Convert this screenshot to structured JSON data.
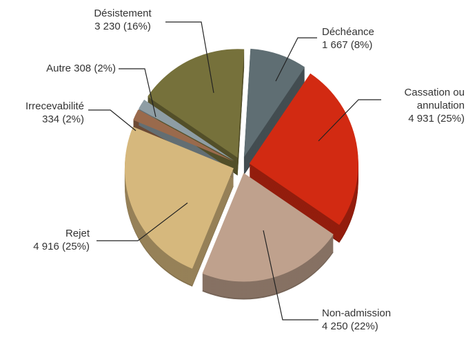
{
  "chart_data": {
    "type": "pie",
    "categories": [
      "Déchéance",
      "Cassation ou annulation",
      "Non-admission",
      "Rejet",
      "Irrecevabilité",
      "Autre",
      "Désistement"
    ],
    "values": [
      1667,
      4931,
      4250,
      4916,
      334,
      308,
      3230
    ],
    "value_labels": [
      "1 667 (8%)",
      "4 931 (25%)",
      "4 250 (22%)",
      "4 916 (25%)",
      "334 (2%)",
      "308 (2%)",
      "3 230 (16%)"
    ],
    "colors": [
      "#5f6e73",
      "#d22a12",
      "#bfa18d",
      "#d6b87d",
      "#9a6a4c",
      "#8e9da4",
      "#76713b"
    ]
  }
}
